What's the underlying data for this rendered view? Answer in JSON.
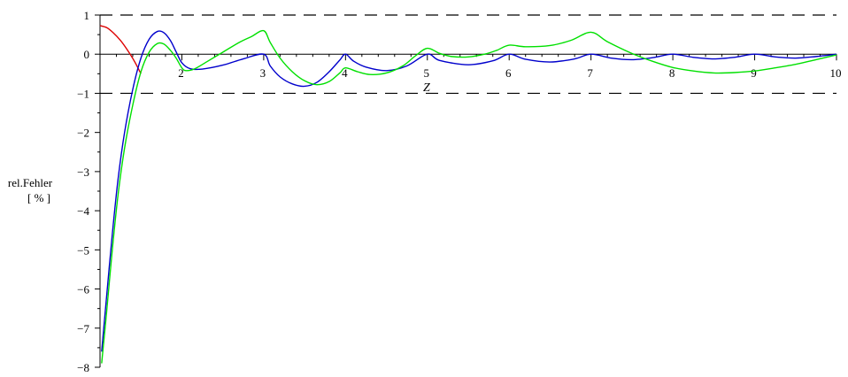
{
  "chart_data": {
    "type": "line",
    "xlabel": "Z",
    "ylabel_line1": "rel.Fehler",
    "ylabel_line2": "[ % ]",
    "xlim": [
      1,
      10
    ],
    "ylim": [
      -8,
      1
    ],
    "x_ticks": [
      2,
      3,
      4,
      5,
      6,
      7,
      8,
      9,
      10
    ],
    "y_ticks": [
      1,
      0,
      -1,
      -2,
      -3,
      -4,
      -5,
      -6,
      -7,
      -8
    ],
    "reference_lines": [
      1,
      -1
    ],
    "series": [
      {
        "color": "#dd0000",
        "points": [
          [
            1.0,
            0.73
          ],
          [
            1.08,
            0.68
          ],
          [
            1.16,
            0.55
          ],
          [
            1.25,
            0.35
          ],
          [
            1.33,
            0.12
          ],
          [
            1.42,
            -0.18
          ],
          [
            1.5,
            -0.5
          ]
        ]
      },
      {
        "color": "#0000cc",
        "points": [
          [
            1.02,
            -7.6
          ],
          [
            1.08,
            -6.2
          ],
          [
            1.15,
            -4.6
          ],
          [
            1.22,
            -3.2
          ],
          [
            1.3,
            -2.0
          ],
          [
            1.4,
            -0.9
          ],
          [
            1.5,
            -0.1
          ],
          [
            1.6,
            0.38
          ],
          [
            1.7,
            0.58
          ],
          [
            1.78,
            0.55
          ],
          [
            1.86,
            0.35
          ],
          [
            1.93,
            0.06
          ],
          [
            2.0,
            -0.22
          ],
          [
            2.1,
            -0.37
          ],
          [
            2.25,
            -0.38
          ],
          [
            2.5,
            -0.28
          ],
          [
            2.75,
            -0.12
          ],
          [
            3.0,
            0.0
          ],
          [
            3.08,
            -0.3
          ],
          [
            3.2,
            -0.58
          ],
          [
            3.35,
            -0.76
          ],
          [
            3.5,
            -0.82
          ],
          [
            3.65,
            -0.72
          ],
          [
            3.8,
            -0.45
          ],
          [
            3.93,
            -0.15
          ],
          [
            4.0,
            0.0
          ],
          [
            4.1,
            -0.18
          ],
          [
            4.25,
            -0.33
          ],
          [
            4.5,
            -0.42
          ],
          [
            4.75,
            -0.3
          ],
          [
            5.0,
            0.0
          ],
          [
            5.15,
            -0.16
          ],
          [
            5.5,
            -0.27
          ],
          [
            5.8,
            -0.17
          ],
          [
            6.0,
            0.0
          ],
          [
            6.2,
            -0.13
          ],
          [
            6.5,
            -0.2
          ],
          [
            6.8,
            -0.12
          ],
          [
            7.0,
            0.0
          ],
          [
            7.25,
            -0.1
          ],
          [
            7.5,
            -0.14
          ],
          [
            7.75,
            -0.09
          ],
          [
            8.0,
            0.0
          ],
          [
            8.25,
            -0.08
          ],
          [
            8.5,
            -0.12
          ],
          [
            8.75,
            -0.08
          ],
          [
            9.0,
            0.0
          ],
          [
            9.25,
            -0.07
          ],
          [
            9.5,
            -0.1
          ],
          [
            9.75,
            -0.06
          ],
          [
            10.0,
            0.0
          ]
        ]
      },
      {
        "color": "#00e000",
        "points": [
          [
            1.02,
            -7.9
          ],
          [
            1.08,
            -6.6
          ],
          [
            1.15,
            -5.0
          ],
          [
            1.22,
            -3.6
          ],
          [
            1.3,
            -2.4
          ],
          [
            1.4,
            -1.3
          ],
          [
            1.5,
            -0.45
          ],
          [
            1.6,
            0.05
          ],
          [
            1.7,
            0.27
          ],
          [
            1.78,
            0.26
          ],
          [
            1.86,
            0.1
          ],
          [
            1.93,
            -0.1
          ],
          [
            2.0,
            -0.35
          ],
          [
            2.05,
            -0.42
          ],
          [
            2.15,
            -0.38
          ],
          [
            2.3,
            -0.2
          ],
          [
            2.5,
            0.05
          ],
          [
            2.7,
            0.3
          ],
          [
            2.85,
            0.45
          ],
          [
            3.0,
            0.6
          ],
          [
            3.08,
            0.3
          ],
          [
            3.2,
            -0.1
          ],
          [
            3.35,
            -0.45
          ],
          [
            3.5,
            -0.68
          ],
          [
            3.65,
            -0.78
          ],
          [
            3.8,
            -0.7
          ],
          [
            3.93,
            -0.48
          ],
          [
            4.0,
            -0.35
          ],
          [
            4.15,
            -0.45
          ],
          [
            4.3,
            -0.52
          ],
          [
            4.5,
            -0.48
          ],
          [
            4.7,
            -0.3
          ],
          [
            4.85,
            -0.05
          ],
          [
            5.0,
            0.15
          ],
          [
            5.15,
            0.02
          ],
          [
            5.3,
            -0.06
          ],
          [
            5.5,
            -0.07
          ],
          [
            5.7,
            0.0
          ],
          [
            5.85,
            0.1
          ],
          [
            6.0,
            0.23
          ],
          [
            6.2,
            0.19
          ],
          [
            6.5,
            0.22
          ],
          [
            6.75,
            0.35
          ],
          [
            7.0,
            0.56
          ],
          [
            7.2,
            0.32
          ],
          [
            7.5,
            0.02
          ],
          [
            7.75,
            -0.18
          ],
          [
            8.0,
            -0.34
          ],
          [
            8.25,
            -0.43
          ],
          [
            8.5,
            -0.48
          ],
          [
            8.75,
            -0.47
          ],
          [
            9.0,
            -0.43
          ],
          [
            9.25,
            -0.35
          ],
          [
            9.5,
            -0.26
          ],
          [
            9.75,
            -0.14
          ],
          [
            10.0,
            -0.02
          ]
        ]
      }
    ]
  }
}
